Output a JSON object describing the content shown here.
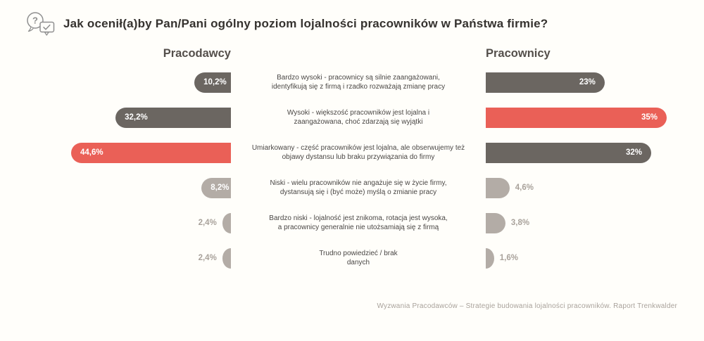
{
  "title": {
    "icon": "question-check-bubbles-icon",
    "text": "Jak ocenił(a)by Pan/Pani ogólny poziom lojalności pracowników w Państwa firmie?"
  },
  "headers": {
    "left": "Pracodawcy",
    "right": "Pracownicy"
  },
  "footer": "Wyzwania Pracodawców – Strategie budowania lojalności pracowników. Raport Trenkwalder",
  "colors": {
    "background": "#fffefa",
    "bar_dark": "#6b6661",
    "bar_red": "#ea6057",
    "bar_taupe": "#b3aca6",
    "value_inside_text": "#ffffff",
    "value_outside_text": "#a9a29b",
    "title_text": "#35322f",
    "category_text": "#4a4745",
    "footer_text": "#a9a29b"
  },
  "chart_data": {
    "type": "bar",
    "variant": "diverging-horizontal",
    "title": "Jak ocenił(a)by Pan/Pani ogólny poziom lojalności pracowników w Państwa firmie?",
    "categories": [
      "Bardzo wysoki - pracownicy są silnie zaangażowani,\nidentyfikują się z firmą i rzadko rozważają zmianę pracy",
      "Wysoki - większość pracowników jest lojalna i\nzaangażowana, choć zdarzają się wyjątki",
      "Umiarkowany - część pracowników jest lojalna, ale obserwujemy też\nobjawy dystansu lub braku przywiązania do firmy",
      "Niski - wielu pracowników nie angażuje się w życie firmy,\ndystansują się i (być może) myślą o zmianie pracy",
      "Bardzo niski - lojalność jest znikoma, rotacja jest wysoka,\na pracownicy generalnie nie utożsamiają się z firmą",
      "Trudno powiedzieć / brak\ndanych"
    ],
    "series": [
      {
        "name": "Pracodawcy",
        "side": "left",
        "values": [
          10.2,
          32.2,
          44.6,
          8.2,
          2.4,
          2.4
        ],
        "value_labels": [
          "10,2%",
          "32,2%",
          "44,6%",
          "8,2%",
          "2,4%",
          "2,4%"
        ],
        "bar_colors": [
          "#6b6661",
          "#6b6661",
          "#ea6057",
          "#b3aca6",
          "#b3aca6",
          "#b3aca6"
        ]
      },
      {
        "name": "Pracownicy",
        "side": "right",
        "values": [
          23,
          35,
          32,
          4.6,
          3.8,
          1.6
        ],
        "value_labels": [
          "23%",
          "35%",
          "32%",
          "4,6%",
          "3,8%",
          "1,6%"
        ],
        "bar_colors": [
          "#6b6661",
          "#ea6057",
          "#6b6661",
          "#b3aca6",
          "#b3aca6",
          "#b3aca6"
        ]
      }
    ],
    "legend": "none",
    "grid": false
  }
}
